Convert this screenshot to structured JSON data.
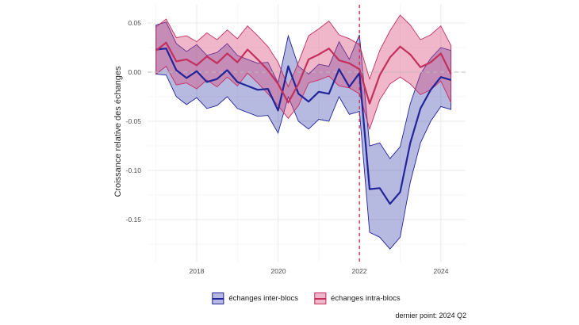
{
  "figure": {
    "caption": "dernier point: 2024 Q2",
    "y_axis_title": "Croissance relative des échanges"
  },
  "colors": {
    "background": "#ffffff",
    "grid_major": "#e9e9e9",
    "grid_minor": "#f4f4f4",
    "zero_line": "#bdbdbd",
    "event_line": "#cd2c45",
    "tick_text": "#4d4d4d",
    "text": "#1a1a1a"
  },
  "chart_data": {
    "type": "line",
    "title": "",
    "xlabel": "",
    "ylabel": "Croissance relative des échanges",
    "caption": "dernier point: 2024 Q2",
    "grid": true,
    "legend_position": "bottom",
    "x_unit": "quarter",
    "x": [
      "2017 Q1",
      "2017 Q2",
      "2017 Q3",
      "2017 Q4",
      "2018 Q1",
      "2018 Q2",
      "2018 Q3",
      "2018 Q4",
      "2019 Q1",
      "2019 Q2",
      "2019 Q3",
      "2019 Q4",
      "2020 Q1",
      "2020 Q2",
      "2020 Q3",
      "2020 Q4",
      "2021 Q1",
      "2021 Q2",
      "2021 Q3",
      "2021 Q4",
      "2022 Q1",
      "2022 Q2",
      "2022 Q3",
      "2022 Q4",
      "2023 Q1",
      "2023 Q2",
      "2023 Q3",
      "2023 Q4",
      "2024 Q1",
      "2024 Q2"
    ],
    "x_tick_labels": [
      "2018",
      "2020",
      "2022",
      "2024"
    ],
    "y_tick_labels": [
      "0.05",
      "0.00",
      "-0.05",
      "-0.10",
      "-0.15"
    ],
    "y_ticks": [
      0.05,
      0.0,
      -0.05,
      -0.1,
      -0.15
    ],
    "ylim": [
      -0.19,
      0.068
    ],
    "reference_lines": {
      "horizontal": {
        "y": 0,
        "style": "dashed",
        "color": "#bdbdbd"
      },
      "vertical": {
        "x": "2022 Q1",
        "style": "dashed",
        "color": "#cd2c45"
      }
    },
    "series": [
      {
        "name": "échanges inter-blocs",
        "color": "#22249b",
        "fill": "rgba(62,70,173,0.38)",
        "values": [
          0.023,
          0.024,
          0.002,
          -0.006,
          0.001,
          -0.01,
          -0.007,
          0.002,
          -0.01,
          -0.014,
          -0.018,
          -0.017,
          -0.039,
          0.006,
          -0.022,
          -0.03,
          -0.02,
          -0.022,
          0.003,
          -0.015,
          -0.001,
          -0.119,
          -0.118,
          -0.134,
          -0.122,
          -0.072,
          -0.037,
          -0.018,
          -0.005,
          -0.008
        ],
        "upper": [
          0.048,
          0.051,
          0.029,
          0.021,
          0.028,
          0.017,
          0.02,
          0.029,
          0.017,
          0.013,
          0.009,
          0.01,
          -0.011,
          0.037,
          0.006,
          -0.002,
          0.008,
          0.006,
          0.031,
          0.013,
          0.038,
          -0.075,
          -0.072,
          -0.088,
          -0.076,
          -0.032,
          -0.002,
          0.014,
          0.025,
          0.022
        ],
        "lower": [
          -0.002,
          -0.003,
          -0.025,
          -0.033,
          -0.026,
          -0.037,
          -0.034,
          -0.025,
          -0.037,
          -0.041,
          -0.045,
          -0.044,
          -0.062,
          -0.025,
          -0.05,
          -0.058,
          -0.048,
          -0.05,
          -0.025,
          -0.043,
          -0.04,
          -0.163,
          -0.168,
          -0.18,
          -0.168,
          -0.112,
          -0.072,
          -0.05,
          -0.035,
          -0.038
        ]
      },
      {
        "name": "échanges intra-blocs",
        "color": "#c42f5e",
        "fill": "rgba(217,72,122,0.40)",
        "values": [
          0.022,
          0.03,
          0.011,
          0.013,
          0.007,
          0.016,
          0.009,
          0.019,
          0.01,
          0.023,
          0.013,
          0.002,
          -0.012,
          -0.031,
          -0.012,
          0.013,
          0.018,
          0.024,
          0.012,
          0.009,
          0.003,
          -0.032,
          -0.003,
          0.015,
          0.026,
          0.018,
          0.005,
          0.01,
          0.019,
          -0.002
        ],
        "upper": [
          0.046,
          0.054,
          0.035,
          0.037,
          0.031,
          0.04,
          0.033,
          0.043,
          0.034,
          0.047,
          0.037,
          0.026,
          0.01,
          -0.015,
          0.01,
          0.037,
          0.044,
          0.052,
          0.038,
          0.034,
          0.028,
          -0.007,
          0.022,
          0.042,
          0.058,
          0.048,
          0.033,
          0.038,
          0.047,
          0.027
        ],
        "lower": [
          -0.002,
          0.006,
          -0.013,
          -0.011,
          -0.017,
          -0.008,
          -0.015,
          -0.005,
          -0.014,
          -0.001,
          -0.011,
          -0.022,
          -0.034,
          -0.047,
          -0.034,
          -0.011,
          -0.008,
          -0.004,
          -0.014,
          -0.016,
          -0.022,
          -0.058,
          -0.028,
          -0.012,
          -0.005,
          -0.012,
          -0.023,
          -0.018,
          -0.009,
          -0.031
        ]
      }
    ]
  }
}
